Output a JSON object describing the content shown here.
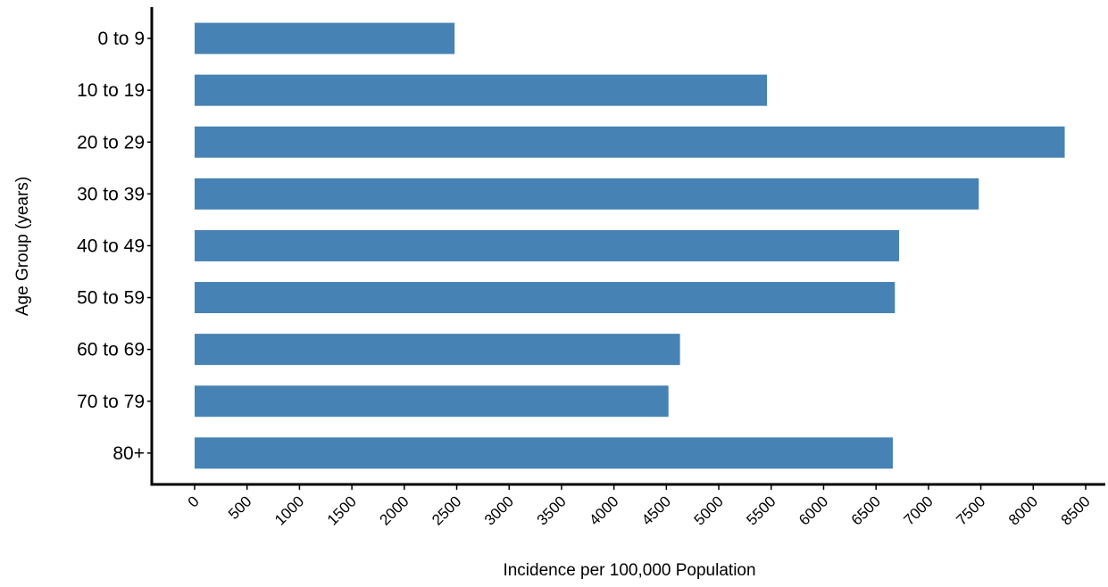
{
  "chart_data": {
    "type": "bar",
    "orientation": "horizontal",
    "categories": [
      "0 to 9",
      "10 to 19",
      "20 to 29",
      "30 to 39",
      "40 to 49",
      "50 to 59",
      "60 to 69",
      "70 to 79",
      "80+"
    ],
    "values": [
      2480,
      5460,
      8300,
      7480,
      6720,
      6680,
      4630,
      4520,
      6660
    ],
    "xlabel": "Incidence per 100,000 Population",
    "ylabel": "Age Group (years)",
    "xlim": [
      0,
      8500
    ],
    "xticks": [
      0,
      500,
      1000,
      1500,
      2000,
      2500,
      3000,
      3500,
      4000,
      4500,
      5000,
      5500,
      6000,
      6500,
      7000,
      7500,
      8000,
      8500
    ],
    "grid": false,
    "legend": "none",
    "bar_color": "#4682b4",
    "axis_color": "#000000"
  }
}
